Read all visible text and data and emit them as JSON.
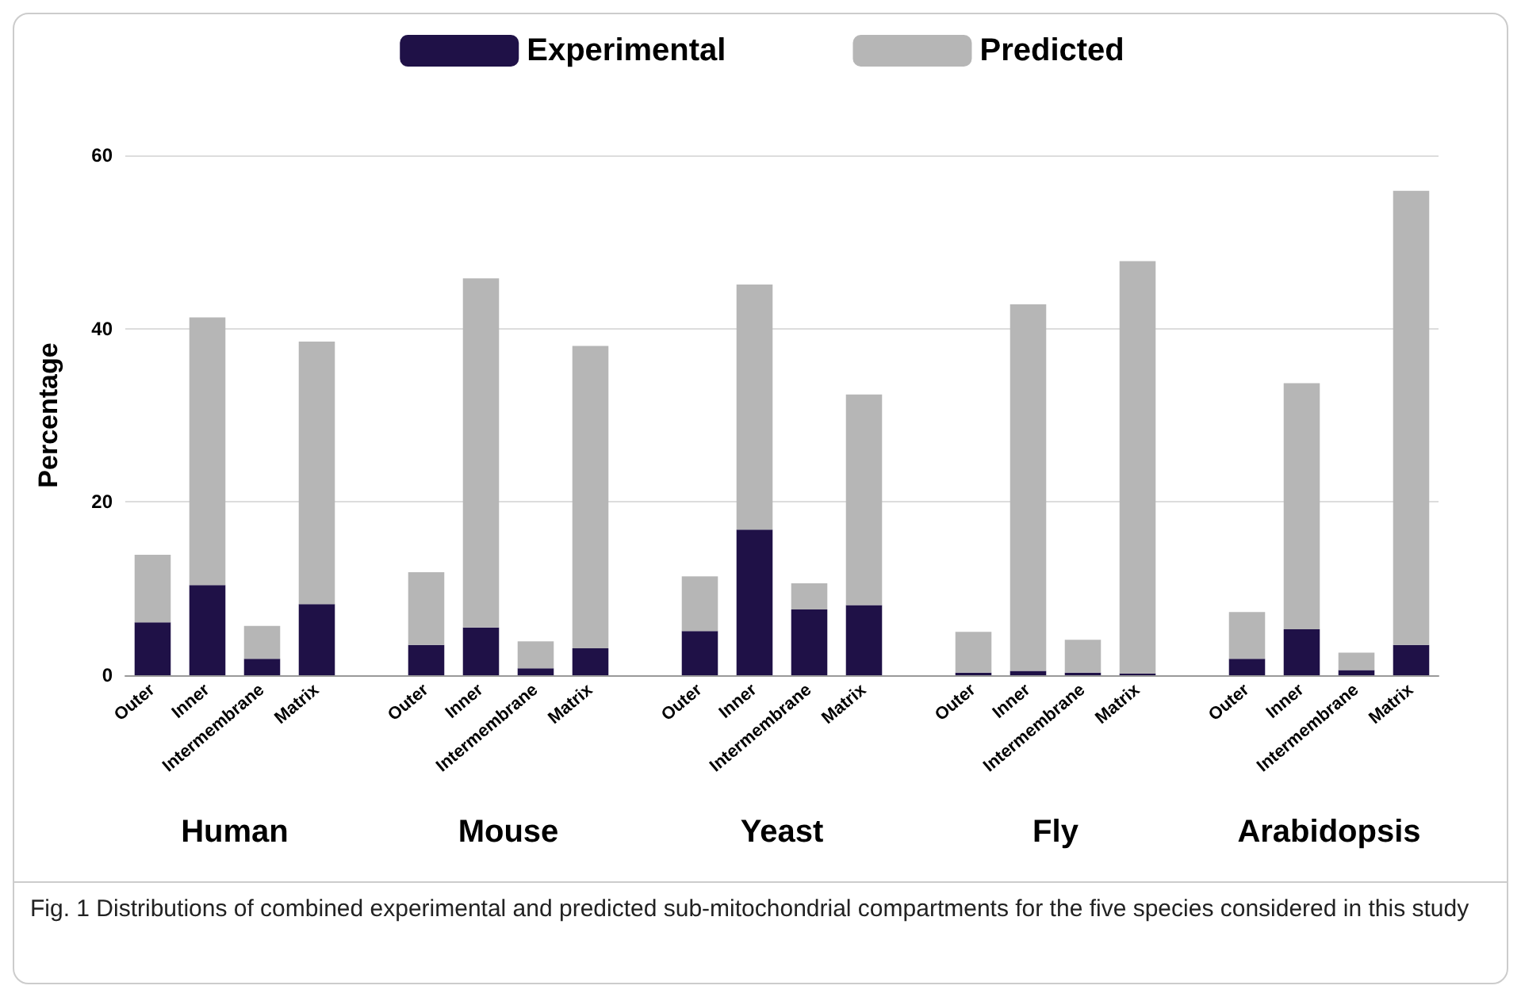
{
  "chart_data": {
    "type": "bar",
    "stacked": true,
    "categories": [
      "Outer",
      "Inner",
      "Intermembrane",
      "Matrix",
      null,
      "Outer",
      "Inner",
      "Intermembrane",
      "Matrix",
      null,
      "Outer",
      "Inner",
      "Intermembrane",
      "Matrix",
      null,
      "Outer",
      "Inner",
      "Intermembrane",
      "Matrix",
      null,
      "Outer",
      "Inner",
      "Intermembrane",
      "Matrix"
    ],
    "series": [
      {
        "name": "Experimental",
        "color": "#1f1147",
        "values": [
          6.1,
          10.4,
          1.9,
          8.2,
          null,
          3.5,
          5.5,
          0.8,
          3.1,
          null,
          5.1,
          16.8,
          7.6,
          8.1,
          null,
          0.3,
          0.5,
          0.3,
          0.2,
          null,
          1.9,
          5.3,
          0.6,
          3.5
        ]
      },
      {
        "name": "Predicted",
        "color": "#b6b6b6",
        "values": [
          7.8,
          30.9,
          3.8,
          30.3,
          null,
          8.4,
          40.3,
          3.1,
          34.9,
          null,
          6.3,
          28.3,
          3.0,
          24.3,
          null,
          4.7,
          42.3,
          3.8,
          47.6,
          null,
          5.4,
          28.4,
          2.0,
          52.4
        ]
      }
    ],
    "ylabel": "Percentage",
    "ylim": [
      0,
      60
    ],
    "yticks": [
      0,
      20,
      40,
      60
    ],
    "grid": "y",
    "legend": "top",
    "annotations": [
      "Human",
      "Mouse",
      "Yeast",
      "Fly",
      "Arabidopsis",
      "Fig. 1 Distributions of combined experimental and predicted sub-mitochondrial compartments for the five species considered in this study"
    ]
  }
}
